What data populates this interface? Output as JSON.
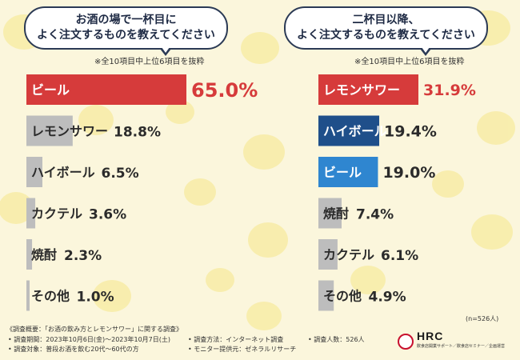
{
  "colors": {
    "highlight": "#d63b3b",
    "blue": "#2f86d0",
    "navy": "#1f4f8a",
    "gray": "#bdbdbd",
    "text": "#2b2b2b"
  },
  "left_panel": {
    "question_line1": "お酒の場で一杯目に",
    "question_line2": "よく注文するものを教えてください",
    "note": "※全10項目中上位6項目を抜粋"
  },
  "right_panel": {
    "question_line1": "二杯目以降、",
    "question_line2": "よく注文するものを教えてください",
    "note": "※全10項目中上位6項目を抜粋"
  },
  "chart_data": [
    {
      "type": "bar",
      "orientation": "horizontal",
      "title": "お酒の場で一杯目によく注文するものを教えてください",
      "unit": "%",
      "categories": [
        "ビール",
        "レモンサワー",
        "ハイボール",
        "カクテル",
        "焼酎",
        "その他"
      ],
      "values": [
        65.0,
        18.8,
        6.5,
        3.6,
        2.3,
        1.0
      ],
      "value_labels": [
        "65.0%",
        "18.8%",
        "6.5%",
        "3.6%",
        "2.3%",
        "1.0%"
      ],
      "bar_colors": [
        "#d63b3b",
        "#bdbdbd",
        "#bdbdbd",
        "#bdbdbd",
        "#bdbdbd",
        "#bdbdbd"
      ],
      "label_inside": [
        true,
        false,
        false,
        false,
        false,
        false
      ],
      "xlim": [
        0,
        65
      ]
    },
    {
      "type": "bar",
      "orientation": "horizontal",
      "title": "二杯目以降、よく注文するものを教えてください",
      "unit": "%",
      "categories": [
        "レモンサワー",
        "ハイボール",
        "ビール",
        "焼酎",
        "カクテル",
        "その他"
      ],
      "values": [
        31.9,
        19.4,
        19.0,
        7.4,
        6.1,
        4.9
      ],
      "value_labels": [
        "31.9%",
        "19.4%",
        "19.0%",
        "7.4%",
        "6.1%",
        "4.9%"
      ],
      "bar_colors": [
        "#d63b3b",
        "#1f4f8a",
        "#2f86d0",
        "#bdbdbd",
        "#bdbdbd",
        "#bdbdbd"
      ],
      "label_inside": [
        true,
        true,
        true,
        false,
        false,
        false
      ],
      "xlim": [
        0,
        31.9
      ]
    }
  ],
  "sample_size": "(n=526人)",
  "footer": {
    "title": "《調査概要：「お酒の飲み方とレモンサワー」に関する調査》",
    "period": "• 調査期間：2023年10月6日(金)～2023年10月7日(土)",
    "target": "• 調査対象：普段お酒を飲む20代～60代の方",
    "method": "• 調査方法：インターネット調査",
    "provider": "• モニター提供元：ゼネラルリサーチ",
    "count": "• 調査人数：526人"
  },
  "logo": {
    "name": "HRC",
    "tagline": "飲食店開業サポート／飲食店セミナー／企画運営"
  }
}
